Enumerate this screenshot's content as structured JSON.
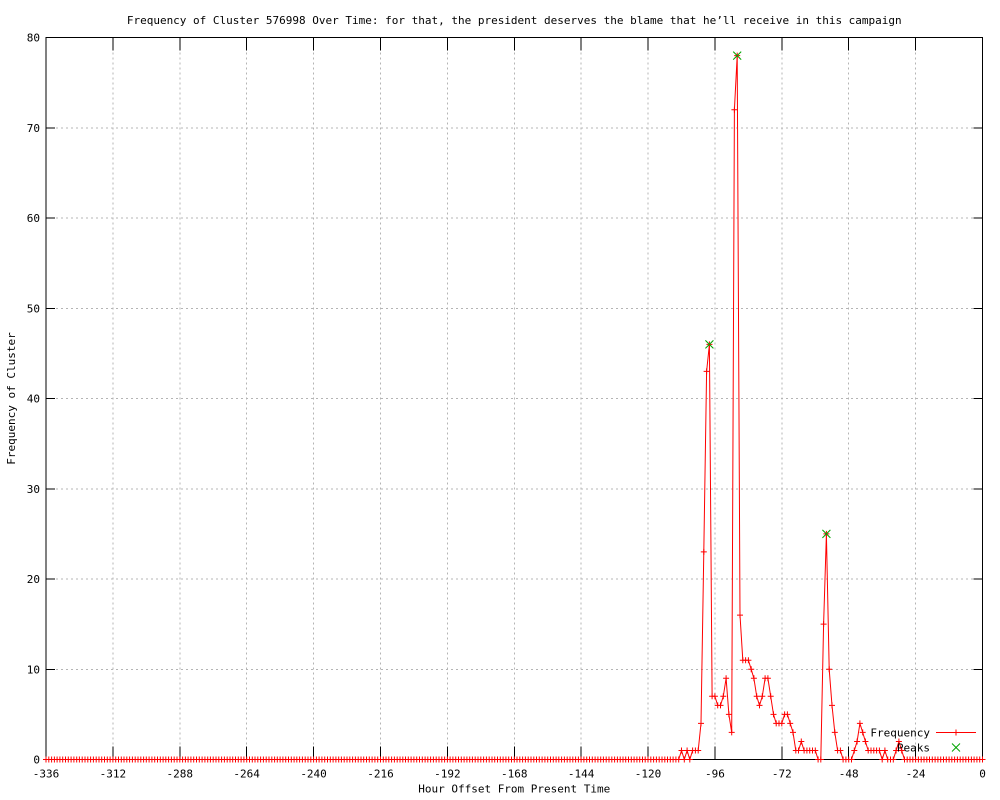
{
  "window": {
    "background": "#ffffff"
  },
  "chart_data": {
    "type": "line",
    "title": "Frequency of Cluster 576998 Over Time: for that, the president deserves the blame that he’ll receive in this campaign",
    "xlabel": "Hour Offset From Present Time",
    "ylabel": "Frequency of Cluster",
    "xlim": [
      -336,
      0
    ],
    "ylim": [
      0,
      80
    ],
    "xticks": [
      -336,
      -312,
      -288,
      -264,
      -240,
      -216,
      -192,
      -168,
      -144,
      -120,
      -96,
      -72,
      -48,
      -24,
      0
    ],
    "yticks": [
      0,
      10,
      20,
      30,
      40,
      50,
      60,
      70,
      80
    ],
    "grid": true,
    "axis_color": "#000000",
    "grid_color": "#b4b4b4",
    "series": [
      {
        "name": "Frequency",
        "type": "linespoints",
        "marker": "plus",
        "color": "#ff0000",
        "x_start": -336,
        "x_end": 0,
        "x_step": 1,
        "baseline_value": 0,
        "nonzero_points": {
          "-108": 1,
          "-106": 1,
          "-104": 1,
          "-103": 1,
          "-102": 1,
          "-101": 4,
          "-100": 23,
          "-99": 43,
          "-98": 46,
          "-97": 7,
          "-96": 7,
          "-95": 6,
          "-94": 6,
          "-93": 7,
          "-92": 9,
          "-91": 5,
          "-90": 3,
          "-89": 72,
          "-88": 78,
          "-87": 16,
          "-86": 11,
          "-85": 11,
          "-84": 11,
          "-83": 10,
          "-82": 9,
          "-81": 7,
          "-80": 6,
          "-79": 7,
          "-78": 9,
          "-77": 9,
          "-76": 7,
          "-75": 5,
          "-74": 4,
          "-73": 4,
          "-72": 4,
          "-71": 5,
          "-70": 5,
          "-69": 4,
          "-68": 3,
          "-67": 1,
          "-66": 1,
          "-65": 2,
          "-64": 1,
          "-63": 1,
          "-62": 1,
          "-61": 1,
          "-60": 1,
          "-57": 15,
          "-56": 25,
          "-55": 10,
          "-54": 6,
          "-53": 3,
          "-52": 1,
          "-51": 1,
          "-46": 1,
          "-45": 2,
          "-44": 4,
          "-43": 3,
          "-42": 2,
          "-41": 1,
          "-40": 1,
          "-39": 1,
          "-38": 1,
          "-37": 1,
          "-35": 1,
          "-31": 1,
          "-30": 2,
          "-29": 1
        }
      },
      {
        "name": "Peaks",
        "type": "points",
        "marker": "cross",
        "color": "#00a400",
        "points": [
          [
            -98,
            46
          ],
          [
            -88,
            78
          ],
          [
            -56,
            25
          ]
        ]
      }
    ],
    "legend": {
      "position": "inside-bottom-right",
      "entries": [
        {
          "label": "Frequency",
          "marker": "plus",
          "with_line": true
        },
        {
          "label": "Peaks",
          "marker": "cross",
          "with_line": false
        }
      ]
    }
  }
}
